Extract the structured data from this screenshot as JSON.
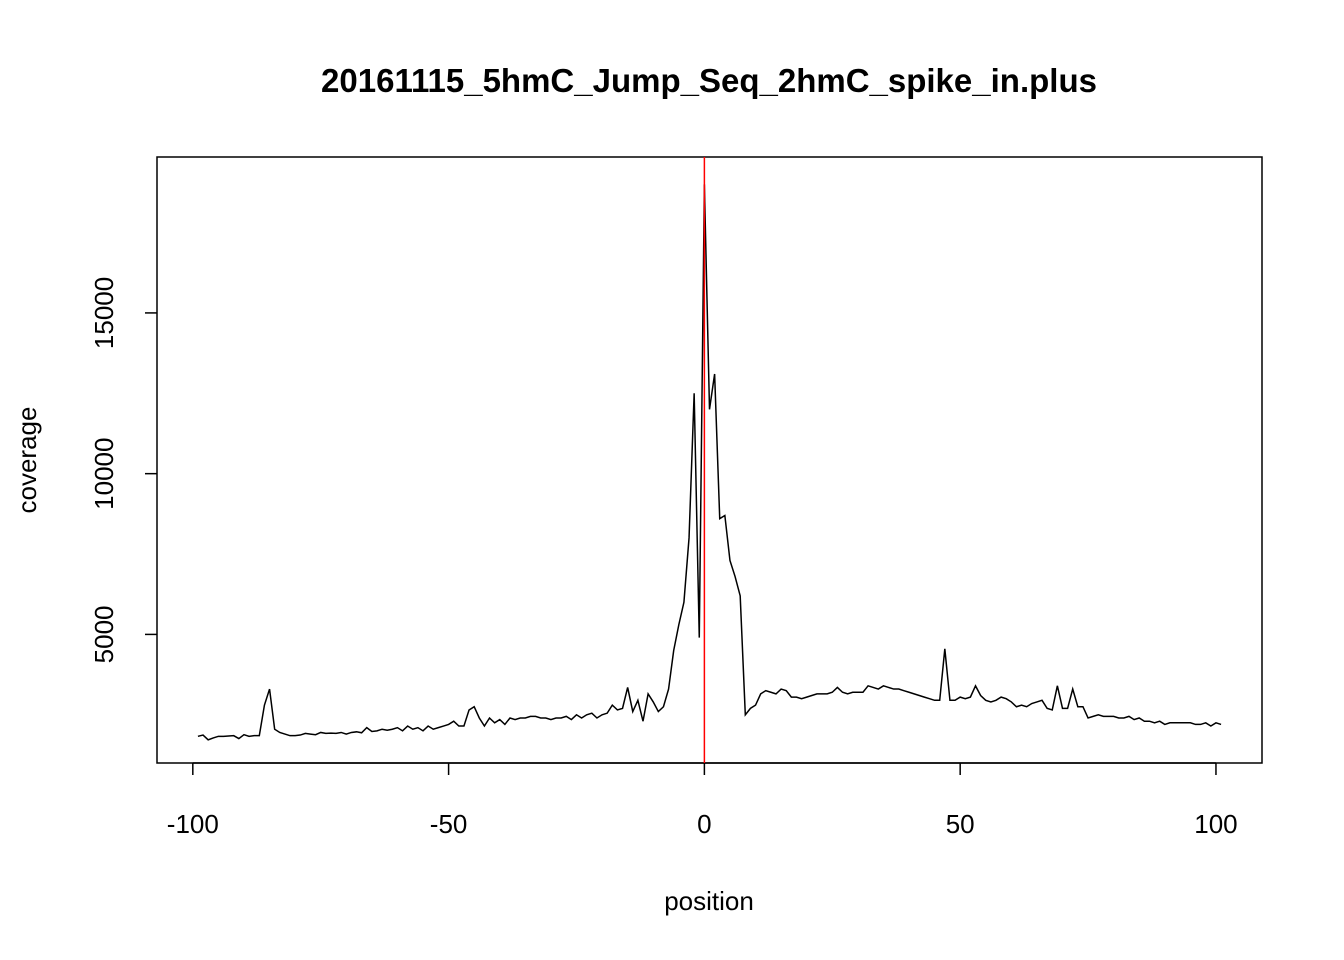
{
  "chart_data": {
    "type": "line",
    "title": "20161115_5hmC_Jump_Seq_2hmC_spike_in.plus",
    "x_label": "position",
    "y_label": "coverage",
    "x": [
      -99,
      -98,
      -97,
      -96,
      -95,
      -94,
      -93,
      -92,
      -91,
      -90,
      -89,
      -88,
      -87,
      -86,
      -85,
      -84,
      -83,
      -82,
      -81,
      -80,
      -79,
      -78,
      -77,
      -76,
      -75,
      -74,
      -73,
      -72,
      -71,
      -70,
      -69,
      -68,
      -67,
      -66,
      -65,
      -64,
      -63,
      -62,
      -61,
      -60,
      -59,
      -58,
      -57,
      -56,
      -55,
      -54,
      -53,
      -52,
      -51,
      -50,
      -49,
      -48,
      -47,
      -46,
      -45,
      -44,
      -43,
      -42,
      -41,
      -40,
      -39,
      -38,
      -37,
      -36,
      -35,
      -34,
      -33,
      -32,
      -31,
      -30,
      -29,
      -28,
      -27,
      -26,
      -25,
      -24,
      -23,
      -22,
      -21,
      -20,
      -19,
      -18,
      -17,
      -16,
      -15,
      -14,
      -13,
      -12,
      -11,
      -10,
      -9,
      -8,
      -7,
      -6,
      -5,
      -4,
      -3,
      -2,
      -1,
      0,
      1,
      2,
      3,
      4,
      5,
      6,
      7,
      8,
      9,
      10,
      11,
      12,
      13,
      14,
      15,
      16,
      17,
      18,
      19,
      20,
      21,
      22,
      23,
      24,
      25,
      26,
      27,
      28,
      29,
      30,
      31,
      32,
      33,
      34,
      35,
      36,
      37,
      38,
      39,
      40,
      41,
      42,
      43,
      44,
      45,
      46,
      47,
      48,
      49,
      50,
      51,
      52,
      53,
      54,
      55,
      56,
      57,
      58,
      59,
      60,
      61,
      62,
      63,
      64,
      65,
      66,
      67,
      68,
      69,
      70,
      71,
      72,
      73,
      74,
      75,
      76,
      77,
      78,
      79,
      80,
      81,
      82,
      83,
      84,
      85,
      86,
      87,
      88,
      89,
      90,
      91,
      92,
      93,
      94,
      95,
      96,
      97,
      98,
      99,
      100,
      101
    ],
    "series": [
      {
        "color": "#000000",
        "values": [
          1830,
          1870,
          1720,
          1780,
          1830,
          1830,
          1840,
          1850,
          1760,
          1880,
          1830,
          1850,
          1850,
          2800,
          3300,
          2050,
          1950,
          1900,
          1850,
          1850,
          1870,
          1920,
          1900,
          1880,
          1950,
          1920,
          1930,
          1920,
          1950,
          1900,
          1950,
          1970,
          1940,
          2100,
          1980,
          2000,
          2050,
          2020,
          2050,
          2100,
          2000,
          2150,
          2050,
          2100,
          2000,
          2150,
          2050,
          2100,
          2150,
          2200,
          2300,
          2150,
          2150,
          2650,
          2750,
          2400,
          2150,
          2400,
          2250,
          2350,
          2200,
          2400,
          2350,
          2400,
          2400,
          2450,
          2450,
          2400,
          2400,
          2350,
          2400,
          2400,
          2450,
          2350,
          2500,
          2400,
          2500,
          2550,
          2400,
          2500,
          2550,
          2800,
          2650,
          2700,
          3350,
          2600,
          2950,
          2300,
          3150,
          2900,
          2600,
          2750,
          3300,
          4500,
          5300,
          6000,
          8000,
          12500,
          4900,
          19000,
          12000,
          13100,
          8600,
          8700,
          7300,
          6800,
          6200,
          2500,
          2700,
          2800,
          3150,
          3250,
          3200,
          3150,
          3300,
          3250,
          3050,
          3050,
          3000,
          3050,
          3100,
          3150,
          3150,
          3150,
          3200,
          3350,
          3200,
          3150,
          3200,
          3200,
          3200,
          3400,
          3350,
          3300,
          3400,
          3350,
          3300,
          3300,
          3250,
          3200,
          3150,
          3100,
          3050,
          3000,
          2950,
          2950,
          4550,
          2950,
          2950,
          3050,
          3000,
          3050,
          3400,
          3100,
          2950,
          2900,
          2950,
          3050,
          3000,
          2900,
          2750,
          2800,
          2750,
          2850,
          2900,
          2950,
          2700,
          2650,
          3400,
          2700,
          2700,
          3300,
          2750,
          2750,
          2400,
          2450,
          2500,
          2450,
          2450,
          2450,
          2400,
          2400,
          2450,
          2350,
          2400,
          2300,
          2300,
          2250,
          2300,
          2200,
          2250,
          2250,
          2250,
          2250,
          2250,
          2200,
          2200,
          2250,
          2150,
          2250,
          2200
        ]
      }
    ],
    "vline": {
      "value": 0,
      "color": "#ff0000"
    },
    "xlim": [
      -107,
      109
    ],
    "xticks": [
      -100,
      -50,
      0,
      50,
      100
    ],
    "ylim": [
      1000,
      19850
    ],
    "yticks": [
      5000,
      10000,
      15000
    ]
  }
}
